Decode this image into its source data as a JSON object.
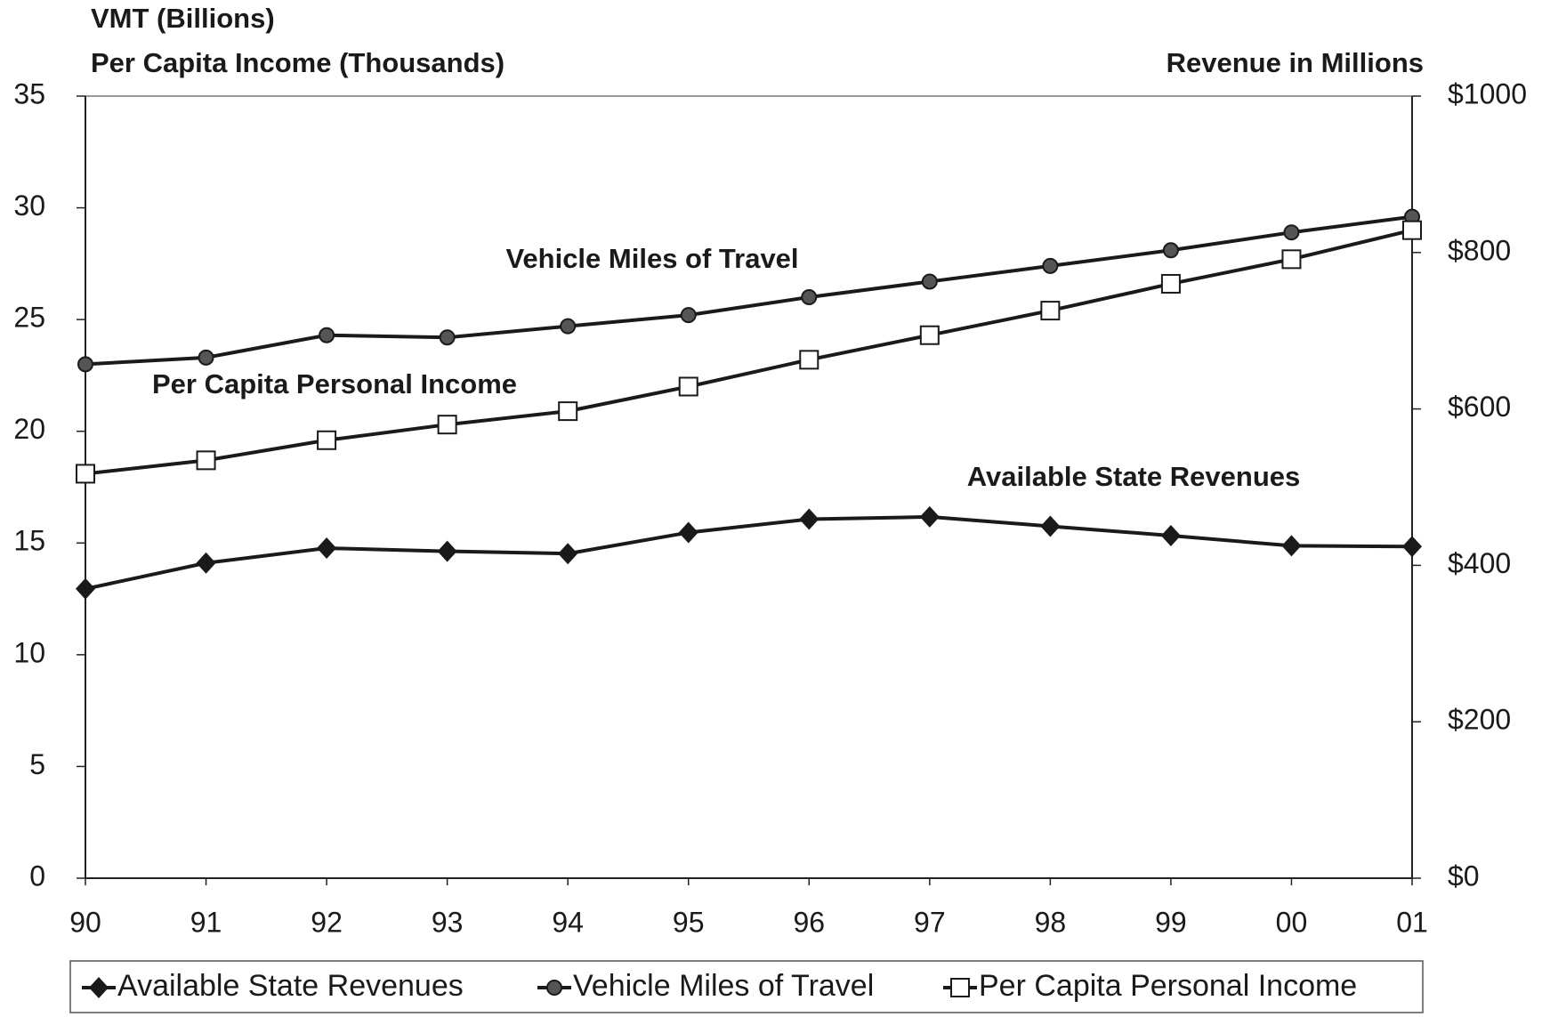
{
  "chart_data": {
    "type": "line",
    "y_axis_title_lines": [
      "VMT (Billions)",
      "Per Capita Income (Thousands)"
    ],
    "y2_axis_title": "Revenue in Millions",
    "categories": [
      "90",
      "91",
      "92",
      "93",
      "94",
      "95",
      "96",
      "97",
      "98",
      "99",
      "00",
      "01"
    ],
    "series": [
      {
        "name": "Available State Revenues",
        "color": "#1a1a1a",
        "marker": "diamond",
        "axis": "y2",
        "values": [
          370,
          403,
          422,
          418,
          415,
          442,
          459,
          462,
          450,
          438,
          425,
          424
        ]
      },
      {
        "name": "Vehicle Miles of Travel",
        "color": "#1a1a1a",
        "marker": "circle",
        "values": [
          23.0,
          23.3,
          24.3,
          24.2,
          24.7,
          25.2,
          26.0,
          26.7,
          27.4,
          28.1,
          28.9,
          29.6
        ]
      },
      {
        "name": "Per Capita Personal Income",
        "color": "#1a1a1a",
        "marker": "square",
        "values": [
          18.1,
          18.7,
          19.6,
          20.3,
          20.9,
          22.0,
          23.2,
          24.3,
          25.4,
          26.6,
          27.7,
          29.0
        ]
      }
    ],
    "annotations": [
      "Vehicle Miles of Travel",
      "Per Capita Personal Income",
      "Available State Revenues"
    ],
    "ylim": [
      0,
      35
    ],
    "yticks": [
      0,
      5,
      10,
      15,
      20,
      25,
      30,
      35
    ],
    "y2lim": [
      0,
      1000
    ],
    "y2ticks": [
      {
        "value": 0,
        "label": "$0"
      },
      {
        "value": 200,
        "label": "$200"
      },
      {
        "value": 400,
        "label": "$400"
      },
      {
        "value": 600,
        "label": "$600"
      },
      {
        "value": 800,
        "label": "$800"
      },
      {
        "value": 1000,
        "label": "$1000"
      }
    ],
    "legend": "bottom"
  }
}
